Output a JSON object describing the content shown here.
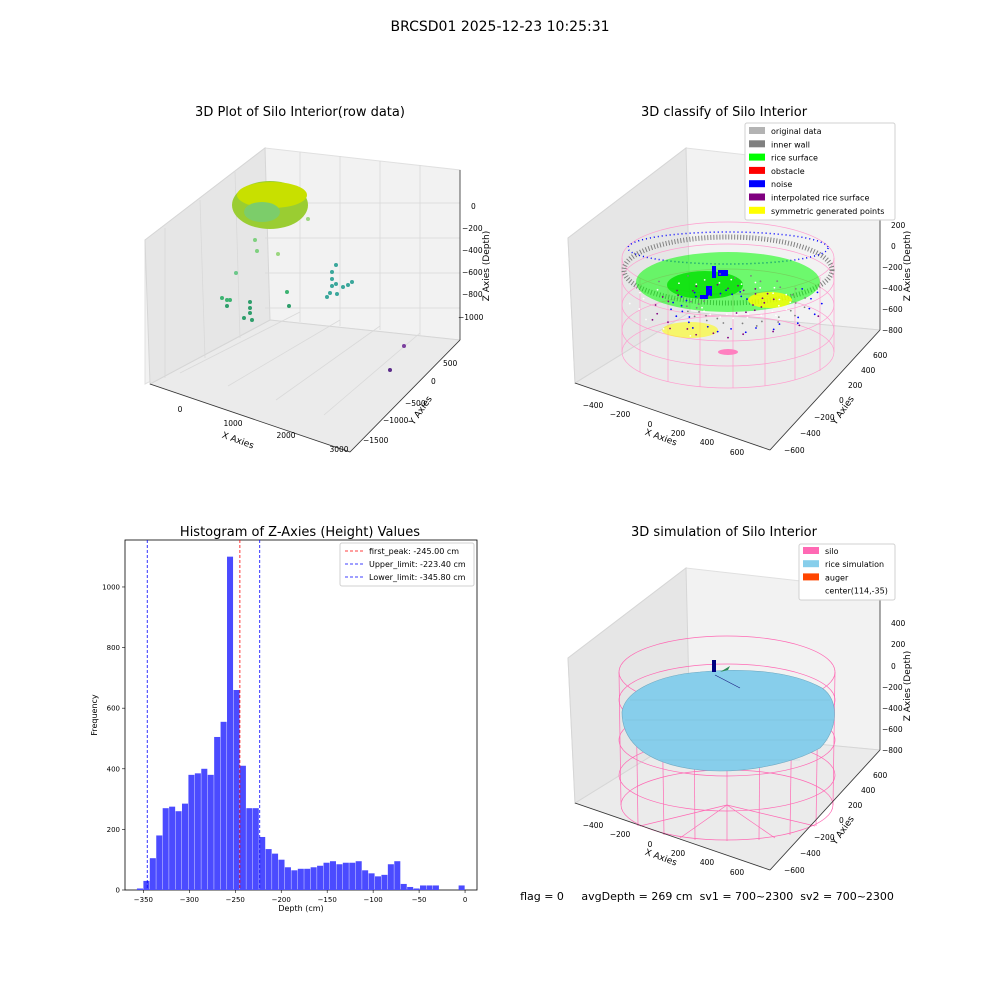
{
  "suptitle": "BRCSD01 2025-12-23 10:25:31",
  "footer": "flag = 0     avgDepth = 269 cm  sv1 = 700~2300  sv2 = 700~2300",
  "panels": {
    "raw": {
      "title": "3D Plot of Silo Interior(row data)",
      "xlabel": "X Axies",
      "ylabel": "Y Axies",
      "zlabel": "Z Axies (Depth)",
      "xticks": [
        "0",
        "1000",
        "2000",
        "3000"
      ],
      "yticks": [
        "500",
        "0",
        "−500",
        "−1000",
        "−1500"
      ],
      "zticks": [
        "0",
        "−200",
        "−400",
        "−600",
        "−800",
        "−1000"
      ]
    },
    "classify": {
      "title": "3D classify of Silo Interior",
      "xlabel": "X Axies",
      "ylabel": "Y Axies",
      "zlabel": "Z Axies (Depth)",
      "xticks": [
        "−400",
        "−200",
        "0",
        "200",
        "400",
        "600"
      ],
      "yticks": [
        "600",
        "400",
        "200",
        "0",
        "−200",
        "−400",
        "−600"
      ],
      "zticks": [
        "200",
        "0",
        "−200",
        "−400",
        "−600",
        "−800"
      ],
      "legend": [
        {
          "label": "original data",
          "color": "#b3b3b3"
        },
        {
          "label": "inner wall",
          "color": "#808080"
        },
        {
          "label": "rice surface",
          "color": "#00ff00"
        },
        {
          "label": "obstacle",
          "color": "#ff0000"
        },
        {
          "label": "noise",
          "color": "#0000ff"
        },
        {
          "label": "interpolated rice surface",
          "color": "#800080"
        },
        {
          "label": "symmetric generated points",
          "color": "#ffff00"
        }
      ]
    },
    "simulation": {
      "title": "3D simulation of Silo Interior",
      "xlabel": "X Axies",
      "ylabel": "Y Axies",
      "zlabel": "Z Axies (Depth)",
      "xticks": [
        "−400",
        "−200",
        "0",
        "200",
        "400",
        "600"
      ],
      "yticks": [
        "600",
        "400",
        "200",
        "0",
        "−200",
        "−400",
        "−600"
      ],
      "zticks": [
        "400",
        "200",
        "0",
        "−200",
        "−400",
        "−600",
        "−800"
      ],
      "legend": [
        {
          "label": "silo",
          "color": "#ff69b4"
        },
        {
          "label": "rice simulation",
          "color": "#87ceeb"
        },
        {
          "label": "auger",
          "color": "#ff4500"
        },
        {
          "label": "center(114,-35)",
          "color": ""
        }
      ]
    }
  },
  "chart_data": {
    "type": "bar",
    "title": "Histogram of Z-Axies (Height) Values",
    "xlabel": "Depth (cm)",
    "ylabel": "Frequency",
    "bar_color": "#4b4bff",
    "xlim": [
      -370,
      13
    ],
    "ylim": [
      0,
      1155
    ],
    "xticks": [
      -350,
      -300,
      -250,
      -200,
      -150,
      -100,
      -50,
      0
    ],
    "yticks": [
      0,
      200,
      400,
      600,
      800,
      1000
    ],
    "bin_width": 7,
    "bins_start": [
      -357,
      -350,
      -343,
      -336,
      -329,
      -322,
      -315,
      -308,
      -301,
      -294,
      -287,
      -280,
      -273,
      -266,
      -259,
      -252,
      -245,
      -238,
      -231,
      -224,
      -217,
      -210,
      -203,
      -196,
      -189,
      -182,
      -175,
      -168,
      -161,
      -154,
      -147,
      -140,
      -133,
      -126,
      -119,
      -112,
      -105,
      -98,
      -91,
      -84,
      -77,
      -70,
      -63,
      -56,
      -49,
      -42,
      -35,
      -28,
      -21,
      -14,
      -7,
      0
    ],
    "values": [
      5,
      30,
      105,
      180,
      270,
      275,
      260,
      285,
      380,
      385,
      400,
      380,
      505,
      555,
      1100,
      660,
      410,
      270,
      270,
      175,
      135,
      120,
      100,
      75,
      65,
      70,
      70,
      75,
      80,
      90,
      95,
      85,
      90,
      90,
      95,
      65,
      55,
      45,
      50,
      85,
      95,
      20,
      10,
      5,
      15,
      15,
      15,
      0,
      0,
      0,
      15,
      0
    ],
    "vlines": [
      {
        "label": "first_peak: -245.00 cm",
        "x": -245,
        "color": "#ff0000"
      },
      {
        "label": "Upper_limit: -223.40 cm",
        "x": -223.4,
        "color": "#0000ff"
      },
      {
        "label": "Lower_limit: -345.80 cm",
        "x": -345.8,
        "color": "#0000ff"
      }
    ],
    "legend_position": "upper-right"
  }
}
